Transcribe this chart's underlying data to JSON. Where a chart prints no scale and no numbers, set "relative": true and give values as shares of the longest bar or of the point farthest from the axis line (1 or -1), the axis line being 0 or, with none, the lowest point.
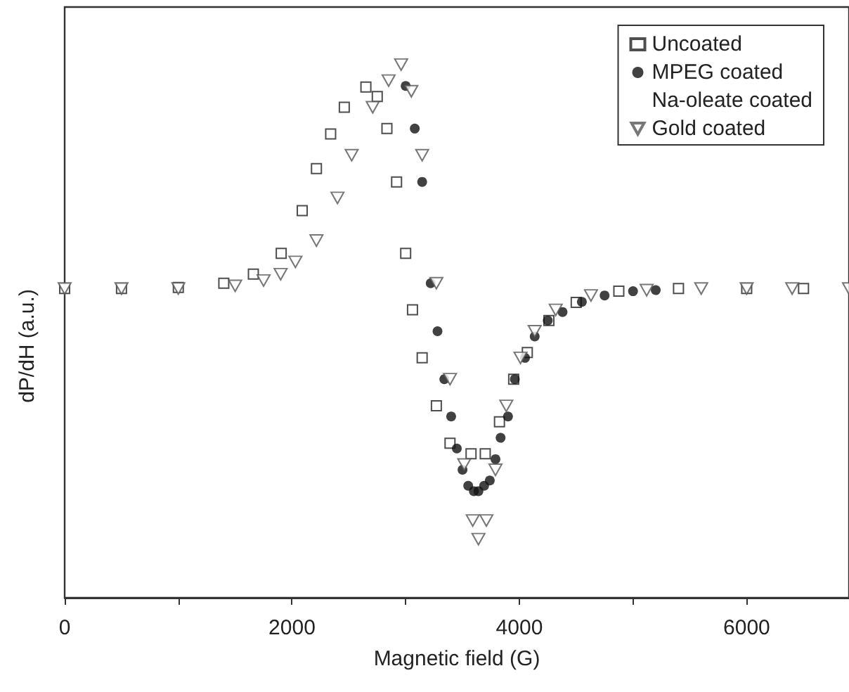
{
  "chart_data": {
    "type": "scatter",
    "xlabel": "Magnetic field (G)",
    "ylabel": "dP/dH (a.u.)",
    "relative": true,
    "xlim": [
      0,
      6900
    ],
    "xticks": [
      0,
      {
        "value": 1000,
        "label": null
      },
      2000,
      {
        "value": 3000,
        "label": null
      },
      4000,
      {
        "value": 5000,
        "label": null
      },
      6000
    ],
    "legend": "top right",
    "grid": false,
    "series": [
      {
        "name": "Uncoated",
        "color": "#222222",
        "marker": "square",
        "x": [
          0,
          500,
          1000,
          1400,
          1660,
          1905,
          2090,
          2215,
          2340,
          2460,
          2650,
          2750,
          2835,
          2920,
          3000,
          3060,
          3145,
          3270,
          3390,
          3575,
          3700,
          3825,
          3950,
          4070,
          4260,
          4500,
          4875,
          5400,
          6000,
          6500
        ],
        "values": [
          0.58,
          0.58,
          0.582,
          0.59,
          0.607,
          0.646,
          0.726,
          0.805,
          0.87,
          0.92,
          0.958,
          0.94,
          0.88,
          0.78,
          0.646,
          0.54,
          0.45,
          0.36,
          0.29,
          0.27,
          0.27,
          0.33,
          0.41,
          0.46,
          0.52,
          0.554,
          0.575,
          0.58,
          0.58,
          0.58
        ]
      },
      {
        "name": "MPEG coated",
        "color": "#111111",
        "marker": "circle",
        "x": [
          3000,
          3080,
          3145,
          3220,
          3280,
          3340,
          3400,
          3450,
          3500,
          3550,
          3600,
          3640,
          3690,
          3740,
          3790,
          3835,
          3900,
          3960,
          4050,
          4135,
          4250,
          4380,
          4550,
          4750,
          5000,
          5200
        ],
        "values": [
          0.96,
          0.88,
          0.78,
          0.59,
          0.5,
          0.41,
          0.34,
          0.28,
          0.24,
          0.21,
          0.2,
          0.2,
          0.21,
          0.22,
          0.26,
          0.3,
          0.34,
          0.41,
          0.45,
          0.49,
          0.52,
          0.536,
          0.555,
          0.567,
          0.575,
          0.577
        ]
      },
      {
        "name": "Na-oleate coated",
        "marker": "none"
      },
      {
        "name": "Gold coated",
        "color": "#555555",
        "marker": "triangle",
        "x": [
          0,
          500,
          1000,
          1500,
          1750,
          1900,
          2030,
          2215,
          2400,
          2525,
          2710,
          2850,
          2960,
          3050,
          3145,
          3270,
          3390,
          3515,
          3590,
          3640,
          3710,
          3790,
          3885,
          4010,
          4135,
          4320,
          4630,
          5120,
          5600,
          6000,
          6400,
          6900
        ],
        "values": [
          0.58,
          0.58,
          0.58,
          0.585,
          0.595,
          0.607,
          0.63,
          0.67,
          0.75,
          0.83,
          0.92,
          0.97,
          1,
          0.95,
          0.83,
          0.59,
          0.41,
          0.25,
          0.145,
          0.11,
          0.145,
          0.24,
          0.36,
          0.45,
          0.5,
          0.54,
          0.567,
          0.577,
          0.58,
          0.58,
          0.58,
          0.58
        ]
      }
    ]
  }
}
